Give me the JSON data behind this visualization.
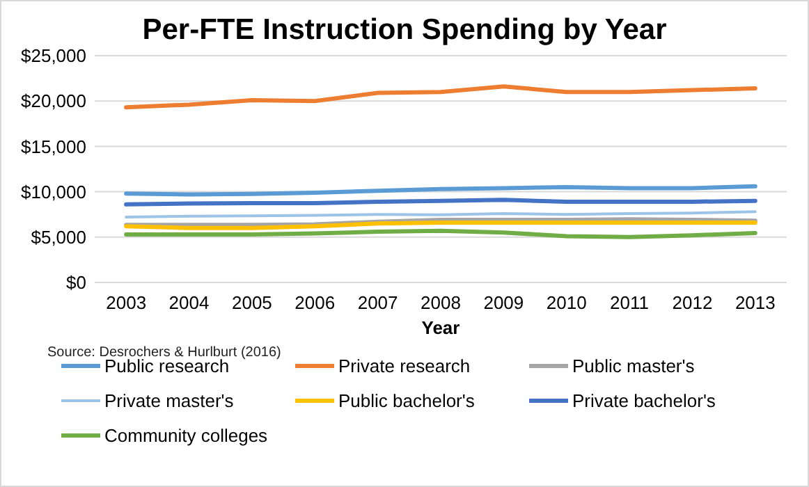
{
  "chart_data": {
    "type": "line",
    "title": "Per-FTE Instruction Spending by Year",
    "xlabel": "Year",
    "categories": [
      "2003",
      "2004",
      "2005",
      "2006",
      "2007",
      "2008",
      "2009",
      "2010",
      "2011",
      "2012",
      "2013"
    ],
    "series": [
      {
        "name": "Public research",
        "color": "#5b9bd5",
        "values": [
          9800,
          9700,
          9750,
          9900,
          10100,
          10300,
          10400,
          10500,
          10400,
          10400,
          10600
        ]
      },
      {
        "name": "Private research",
        "color": "#ed7d31",
        "values": [
          19300,
          19600,
          20100,
          20000,
          20900,
          21000,
          21600,
          21000,
          21000,
          21200,
          21400
        ]
      },
      {
        "name": "Public master's",
        "color": "#a5a5a5",
        "values": [
          6350,
          6350,
          6350,
          6400,
          6700,
          6900,
          6900,
          6900,
          6950,
          6900,
          6800
        ]
      },
      {
        "name": "Private master's",
        "color": "#9dc3e6",
        "values": [
          7200,
          7300,
          7350,
          7400,
          7500,
          7450,
          7600,
          7500,
          7600,
          7650,
          7800
        ]
      },
      {
        "name": "Public bachelor's",
        "color": "#ffc000",
        "values": [
          6200,
          6000,
          6000,
          6200,
          6500,
          6600,
          6600,
          6600,
          6600,
          6600,
          6600
        ]
      },
      {
        "name": "Private bachelor's",
        "color": "#4472c4",
        "values": [
          8600,
          8700,
          8750,
          8750,
          8900,
          9000,
          9100,
          8900,
          8900,
          8900,
          9000
        ]
      },
      {
        "name": "Community colleges",
        "color": "#70ad47",
        "values": [
          5300,
          5300,
          5300,
          5400,
          5600,
          5700,
          5500,
          5100,
          5000,
          5200,
          5450
        ]
      }
    ],
    "ylim": [
      0,
      25000
    ],
    "yticks": [
      {
        "value": 0,
        "label": "$0"
      },
      {
        "value": 5000,
        "label": "$5,000"
      },
      {
        "value": 10000,
        "label": "$10,000"
      },
      {
        "value": 15000,
        "label": "$15,000"
      },
      {
        "value": 20000,
        "label": "$20,000"
      },
      {
        "value": 25000,
        "label": "$25,000"
      }
    ],
    "grid": "y",
    "legend": "bottom",
    "marker": "none",
    "line_style": "solid",
    "annotations": [
      "Source: Desrochers & Hurlburt (2016)"
    ]
  }
}
